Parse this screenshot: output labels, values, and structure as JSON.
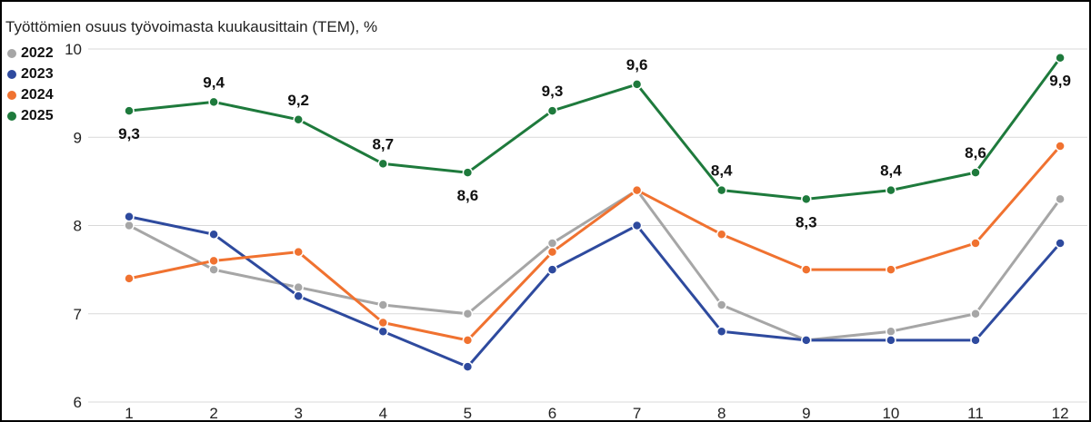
{
  "chart_data": {
    "type": "line",
    "title": "Työttömien osuus työvoimasta kuukausittain (TEM), %",
    "xlabel": "",
    "ylabel": "",
    "x": [
      "1",
      "2",
      "3",
      "4",
      "5",
      "6",
      "7",
      "8",
      "9",
      "10",
      "11",
      "12"
    ],
    "ylim": [
      6,
      10
    ],
    "yticks": [
      "6",
      "7",
      "8",
      "9",
      "10"
    ],
    "grid": true,
    "legend_position": "top-left",
    "series": [
      {
        "name": "2022",
        "color": "#a6a6a6",
        "values": [
          8.0,
          7.5,
          7.3,
          7.1,
          7.0,
          7.8,
          8.4,
          7.1,
          6.7,
          6.8,
          7.0,
          8.3
        ]
      },
      {
        "name": "2023",
        "color": "#2e4a9e",
        "values": [
          8.1,
          7.9,
          7.2,
          6.8,
          6.4,
          7.5,
          8.0,
          6.8,
          6.7,
          6.7,
          6.7,
          7.8
        ]
      },
      {
        "name": "2024",
        "color": "#f07230",
        "values": [
          7.4,
          7.6,
          7.7,
          6.9,
          6.7,
          7.7,
          8.4,
          7.9,
          7.5,
          7.5,
          7.8,
          8.9
        ]
      },
      {
        "name": "2025",
        "color": "#1e7a3c",
        "values": [
          9.3,
          9.4,
          9.2,
          8.7,
          8.6,
          9.3,
          9.6,
          8.4,
          8.3,
          8.4,
          8.6,
          9.9
        ],
        "data_labels": [
          "9,3",
          "9,4",
          "9,2",
          "8,7",
          "8,6",
          "9,3",
          "9,6",
          "8,4",
          "8,3",
          "8,4",
          "8,6",
          "9,9"
        ]
      }
    ]
  }
}
